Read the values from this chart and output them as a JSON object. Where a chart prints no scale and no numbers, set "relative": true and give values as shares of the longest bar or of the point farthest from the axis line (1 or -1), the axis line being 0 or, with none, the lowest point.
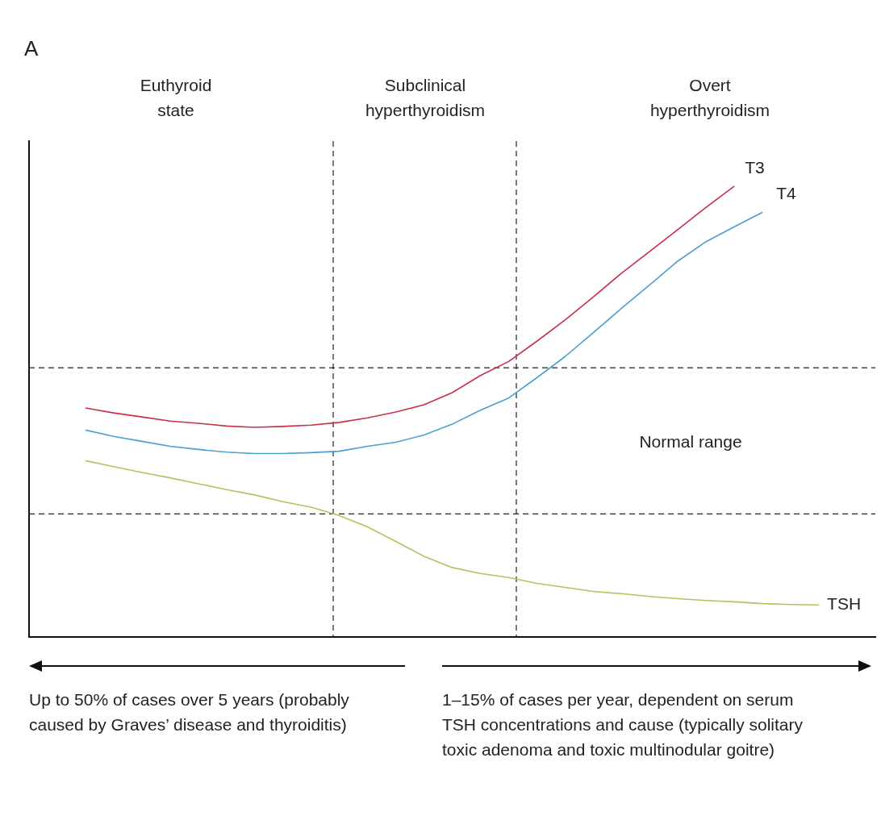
{
  "chart_data": {
    "type": "line",
    "title": "A",
    "relative": true,
    "legend": false,
    "grid": false,
    "tick_labels": false,
    "marker": "none",
    "line_style": "solid",
    "categories": [
      null,
      null,
      null,
      null,
      null,
      null,
      null,
      null,
      null,
      null,
      null,
      null,
      null,
      null,
      null,
      null,
      null,
      null,
      null,
      null,
      null,
      null,
      null,
      null,
      null,
      null,
      null,
      null,
      null,
      null,
      null
    ],
    "series": [
      {
        "name": "T3",
        "color": "#c8304a",
        "values": [
          null,
          null,
          0.508,
          0.497,
          0.488,
          0.479,
          0.474,
          0.468,
          0.465,
          0.467,
          0.47,
          0.476,
          0.486,
          0.499,
          0.515,
          0.542,
          0.58,
          0.611,
          0.656,
          0.703,
          0.754,
          0.807,
          0.855,
          0.904,
          0.953,
          1,
          null,
          null,
          null,
          null,
          null
        ]
      },
      {
        "name": "T4",
        "color": "#4aa0d0",
        "values": [
          null,
          null,
          0.459,
          0.445,
          0.434,
          0.423,
          0.416,
          0.41,
          0.407,
          0.407,
          0.409,
          0.412,
          0.423,
          0.432,
          0.448,
          0.472,
          0.503,
          0.53,
          0.575,
          0.622,
          0.675,
          0.729,
          0.781,
          0.834,
          0.877,
          0.91,
          0.942,
          null,
          null,
          null,
          null
        ]
      },
      {
        "name": "TSH",
        "color": "#b8c060",
        "values": [
          null,
          null,
          0.391,
          0.378,
          0.365,
          0.353,
          0.34,
          0.327,
          0.315,
          0.3,
          0.288,
          0.269,
          0.244,
          0.212,
          0.179,
          0.154,
          0.141,
          0.132,
          0.119,
          0.11,
          0.101,
          0.096,
          0.09,
          0.085,
          0.081,
          0.078,
          0.074,
          0.072,
          0.071,
          null,
          null
        ]
      }
    ],
    "ref_lines": [
      {
        "axis": "y",
        "value": 0.597,
        "color": "#222222",
        "line_style": "dashed"
      },
      {
        "axis": "y",
        "value": 0.273,
        "color": "#222222",
        "line_style": "dashed"
      }
    ],
    "annotations": [
      "Euthyroid state",
      "Subclinical hyperthyroidism",
      "Overt hyperthyroidism",
      "Normal range",
      "Up to 50% of cases over 5 years (probably caused by Graves’ disease and thyroiditis)",
      "1–15% of cases per year, dependent on serum TSH concentrations and cause (typically solitary toxic adenoma and toxic multinodular goitre)"
    ]
  }
}
